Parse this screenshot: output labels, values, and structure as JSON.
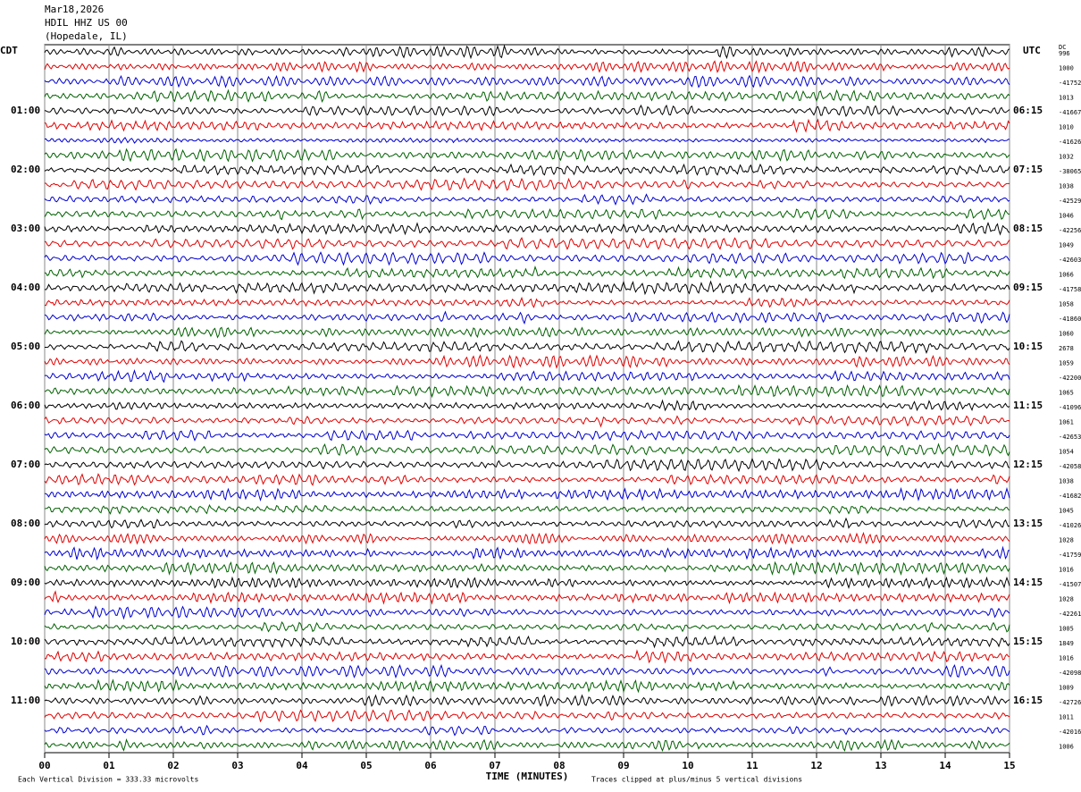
{
  "header": {
    "lines": [
      "Mar18,2026",
      "HDIL HHZ US 00",
      "(Hopedale, IL)"
    ]
  },
  "left_labels": {
    "title": "CDT",
    "hours": [
      "01:00",
      "02:00",
      "03:00",
      "04:00",
      "05:00",
      "06:00",
      "07:00",
      "08:00",
      "09:00",
      "10:00",
      "11:00"
    ]
  },
  "right_labels": {
    "title": "UTC",
    "hours": [
      "06:15",
      "07:15",
      "08:15",
      "09:15",
      "10:15",
      "11:15",
      "12:15",
      "13:15",
      "14:15",
      "15:15",
      "16:15"
    ]
  },
  "dc": {
    "title": "DC",
    "values": [
      996,
      1000,
      -41752,
      1013,
      -41667,
      1010,
      -41626,
      1032,
      -38065,
      1038,
      -42529,
      1046,
      -42256,
      1049,
      -42603,
      1066,
      -41758,
      1058,
      -41860,
      1060,
      2678,
      1059,
      -42200,
      1065,
      -41096,
      1061,
      -42653,
      1054,
      -42058,
      1038,
      -41682,
      1045,
      -41026,
      1028,
      -41759,
      1016,
      -41507,
      1028,
      -42261,
      1005,
      1849,
      1016,
      -42098,
      1009,
      -42726,
      1011,
      -42016,
      1006
    ]
  },
  "x_axis": {
    "ticks": [
      "00",
      "01",
      "02",
      "03",
      "04",
      "05",
      "06",
      "07",
      "08",
      "09",
      "10",
      "11",
      "12",
      "13",
      "14",
      "15"
    ],
    "label": "TIME (MINUTES)"
  },
  "footer": {
    "scale": "Each Vertical Division =  333.33 microvolts",
    "clip": "Traces clipped at plus/minus 5 vertical divisions"
  },
  "trace_colors": [
    "#000000",
    "#e00000",
    "#0000d0",
    "#006000"
  ]
}
